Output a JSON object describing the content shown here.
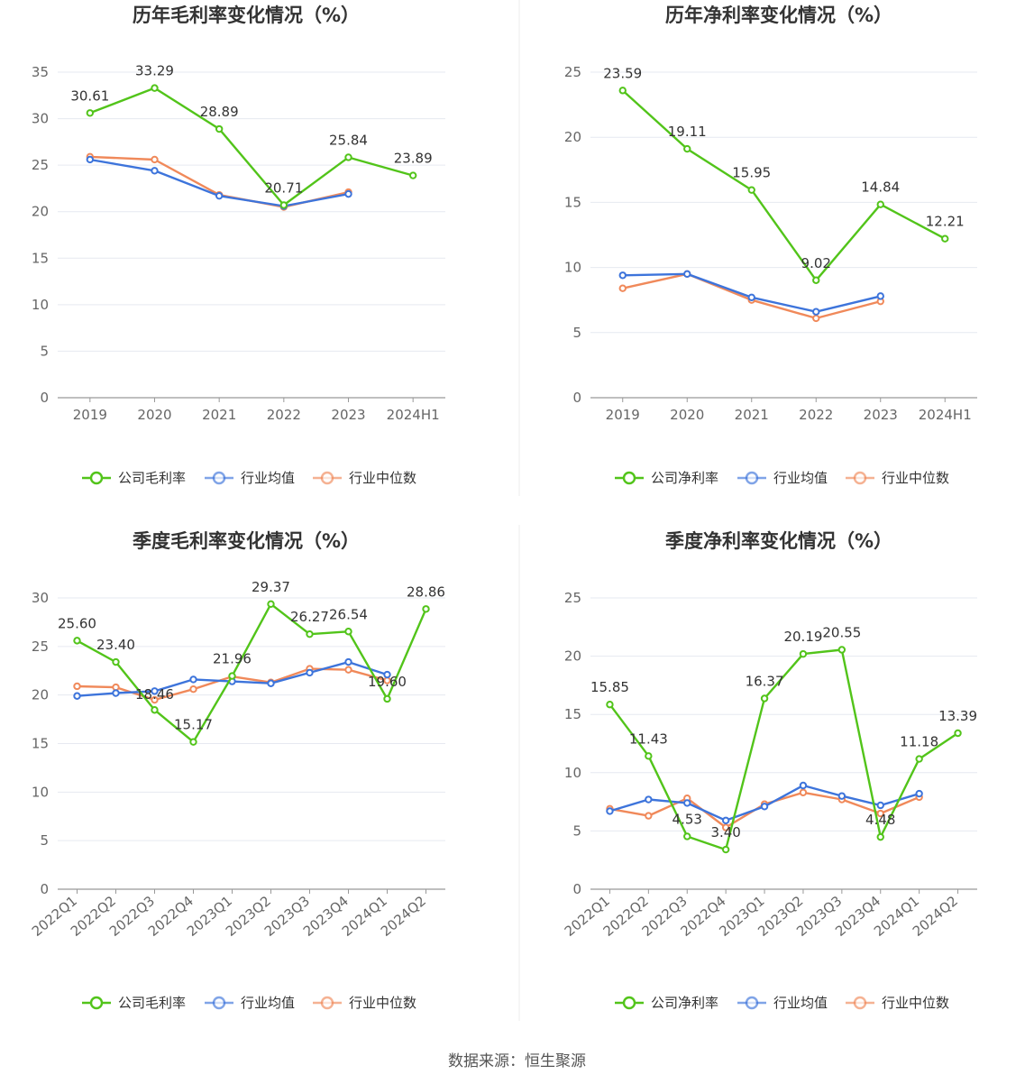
{
  "legend_line_colors": {
    "company": "#52c41a",
    "industry_avg": "#3d74db",
    "industry_median": "#f0895a"
  },
  "source": "数据来源：恒生聚源",
  "chart_data": [
    {
      "type": "line",
      "title": "历年毛利率变化情况（%）",
      "x": [
        "2019",
        "2020",
        "2021",
        "2022",
        "2023",
        "2024H1"
      ],
      "ylim": [
        0,
        35
      ],
      "yticks": [
        0,
        5,
        10,
        15,
        20,
        25,
        30,
        35
      ],
      "grid": true,
      "legend_position": "bottom",
      "label_series": 0,
      "labels": [
        "30.61",
        "33.29",
        "28.89",
        "20.71",
        "25.84",
        "23.89"
      ],
      "series": [
        {
          "name": "公司毛利率",
          "color": "#52c41a",
          "values": [
            30.61,
            33.29,
            28.89,
            20.71,
            25.84,
            23.89
          ]
        },
        {
          "name": "行业均值",
          "color": "#3d74db",
          "values": [
            25.6,
            24.4,
            21.7,
            20.6,
            21.9,
            null
          ]
        },
        {
          "name": "行业中位数",
          "color": "#f0895a",
          "values": [
            25.9,
            25.6,
            21.8,
            20.5,
            22.1,
            null
          ]
        }
      ]
    },
    {
      "type": "line",
      "title": "历年净利率变化情况（%）",
      "x": [
        "2019",
        "2020",
        "2021",
        "2022",
        "2023",
        "2024H1"
      ],
      "ylim": [
        0,
        25
      ],
      "yticks": [
        0,
        5,
        10,
        15,
        20,
        25
      ],
      "grid": true,
      "legend_position": "bottom",
      "label_series": 0,
      "labels": [
        "23.59",
        "19.11",
        "15.95",
        "9.02",
        "14.84",
        "12.21"
      ],
      "series": [
        {
          "name": "公司净利率",
          "color": "#52c41a",
          "values": [
            23.59,
            19.11,
            15.95,
            9.02,
            14.84,
            12.21
          ]
        },
        {
          "name": "行业均值",
          "color": "#3d74db",
          "values": [
            9.4,
            9.5,
            7.7,
            6.6,
            7.8,
            null
          ]
        },
        {
          "name": "行业中位数",
          "color": "#f0895a",
          "values": [
            8.4,
            9.5,
            7.5,
            6.1,
            7.4,
            null
          ]
        }
      ]
    },
    {
      "type": "line",
      "title": "季度毛利率变化情况（%）",
      "x": [
        "2022Q1",
        "2022Q2",
        "2022Q3",
        "2022Q4",
        "2023Q1",
        "2023Q2",
        "2023Q3",
        "2023Q4",
        "2024Q1",
        "2024Q2"
      ],
      "ylim": [
        0,
        30
      ],
      "yticks": [
        0,
        5,
        10,
        15,
        20,
        25,
        30
      ],
      "grid": true,
      "legend_position": "bottom",
      "label_series": 0,
      "labels": [
        "25.60",
        "23.40",
        "18.46",
        "15.17",
        "21.96",
        "29.37",
        "26.27",
        "26.54",
        "19.60",
        "28.86"
      ],
      "series": [
        {
          "name": "公司毛利率",
          "color": "#52c41a",
          "values": [
            25.6,
            23.4,
            18.46,
            15.17,
            21.96,
            29.37,
            26.27,
            26.54,
            19.6,
            28.86
          ]
        },
        {
          "name": "行业均值",
          "color": "#3d74db",
          "values": [
            19.9,
            20.2,
            20.4,
            21.6,
            21.4,
            21.2,
            22.3,
            23.4,
            22.1,
            null
          ]
        },
        {
          "name": "行业中位数",
          "color": "#f0895a",
          "values": [
            20.9,
            20.8,
            19.5,
            20.6,
            21.9,
            21.3,
            22.7,
            22.6,
            21.5,
            null
          ]
        }
      ]
    },
    {
      "type": "line",
      "title": "季度净利率变化情况（%）",
      "x": [
        "2022Q1",
        "2022Q2",
        "2022Q3",
        "2022Q4",
        "2023Q1",
        "2023Q2",
        "2023Q3",
        "2023Q4",
        "2024Q1",
        "2024Q2"
      ],
      "ylim": [
        0,
        25
      ],
      "yticks": [
        0,
        5,
        10,
        15,
        20,
        25
      ],
      "grid": true,
      "legend_position": "bottom",
      "label_series": 0,
      "labels": [
        "15.85",
        "11.43",
        "4.53",
        "3.40",
        "16.37",
        "20.19",
        "20.55",
        "4.48",
        "11.18",
        "13.39"
      ],
      "series": [
        {
          "name": "公司净利率",
          "color": "#52c41a",
          "values": [
            15.85,
            11.43,
            4.53,
            3.4,
            16.37,
            20.19,
            20.55,
            4.48,
            11.18,
            13.39
          ]
        },
        {
          "name": "行业均值",
          "color": "#3d74db",
          "values": [
            6.7,
            7.7,
            7.4,
            5.9,
            7.1,
            8.9,
            8.0,
            7.2,
            8.2,
            null
          ]
        },
        {
          "name": "行业中位数",
          "color": "#f0895a",
          "values": [
            6.9,
            6.3,
            7.8,
            5.3,
            7.3,
            8.3,
            7.7,
            6.5,
            7.9,
            null
          ]
        }
      ]
    }
  ]
}
